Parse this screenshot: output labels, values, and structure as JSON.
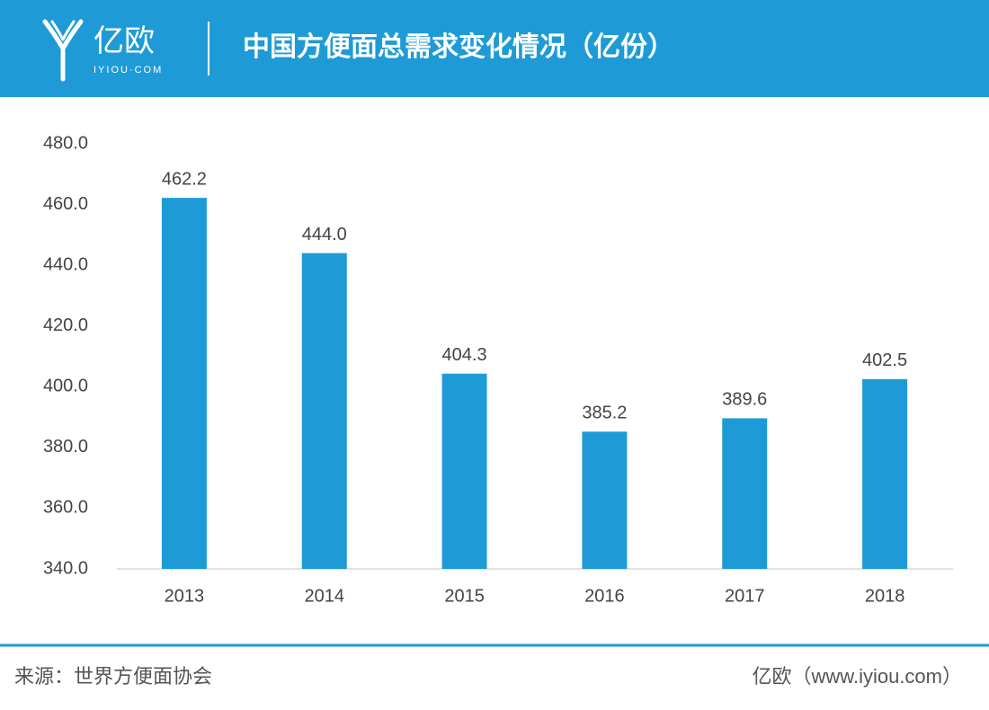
{
  "logo": {
    "text": "亿欧",
    "subtext": "IYIOU·COM"
  },
  "chart_data": {
    "type": "bar",
    "title": "中国方便面总需求变化情况（亿份）",
    "categories": [
      "2013",
      "2014",
      "2015",
      "2016",
      "2017",
      "2018"
    ],
    "values": [
      462.2,
      444,
      404.3,
      385.2,
      389.6,
      402.5
    ],
    "value_labels": [
      "462.2",
      "444.0",
      "404.3",
      "385.2",
      "389.6",
      "402.5"
    ],
    "color": "#1e9bd7",
    "ylim": [
      340,
      480
    ],
    "yticks": [
      {
        "value": 340,
        "label": "340.0"
      },
      {
        "value": 360,
        "label": "360.0"
      },
      {
        "value": 380,
        "label": "380.0"
      },
      {
        "value": 400,
        "label": "400.0"
      },
      {
        "value": 420,
        "label": "420.0"
      },
      {
        "value": 440,
        "label": "440.0"
      },
      {
        "value": 460,
        "label": "460.0"
      },
      {
        "value": 480,
        "label": "480.0"
      }
    ],
    "grid": false,
    "source": "来源：世界方便面协会",
    "credit": "亿欧（www.iyiou.com）"
  }
}
